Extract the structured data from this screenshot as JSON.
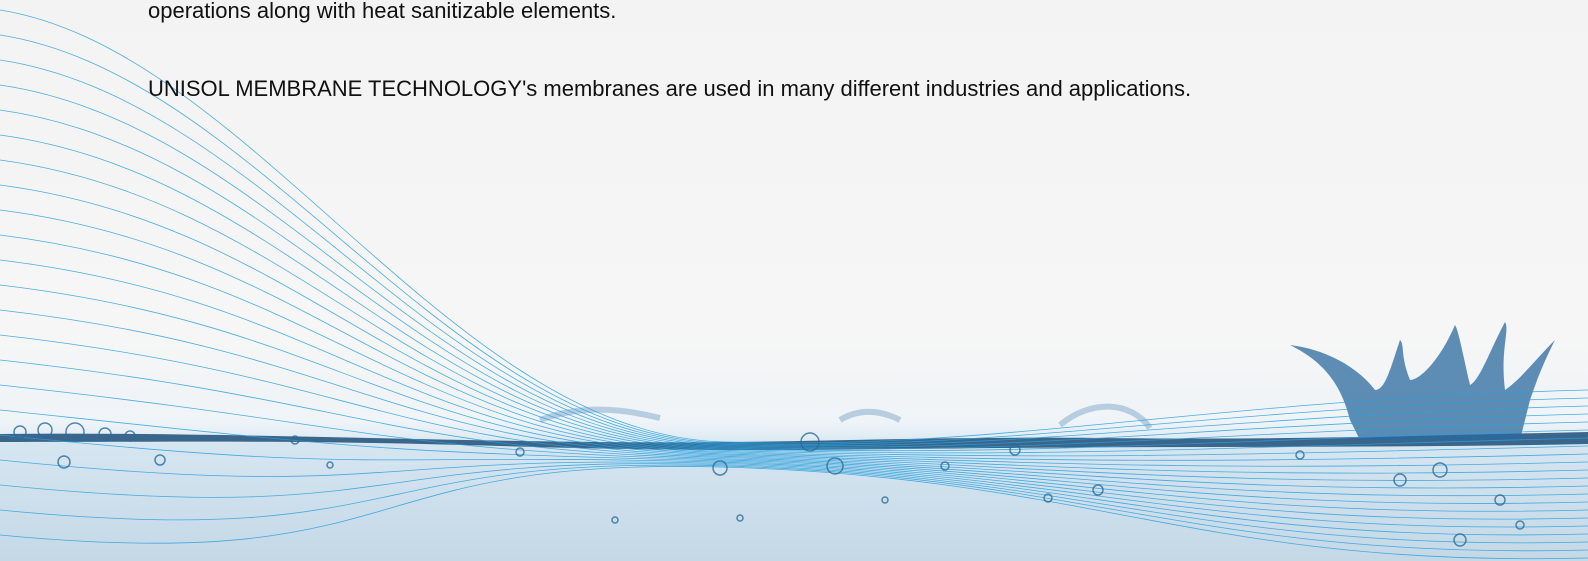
{
  "paragraphs": [
    "operations along with heat sanitizable elements.",
    "UNISOL MEMBRANE TECHNOLOGY's membranes are used in many different industries and applications."
  ]
}
